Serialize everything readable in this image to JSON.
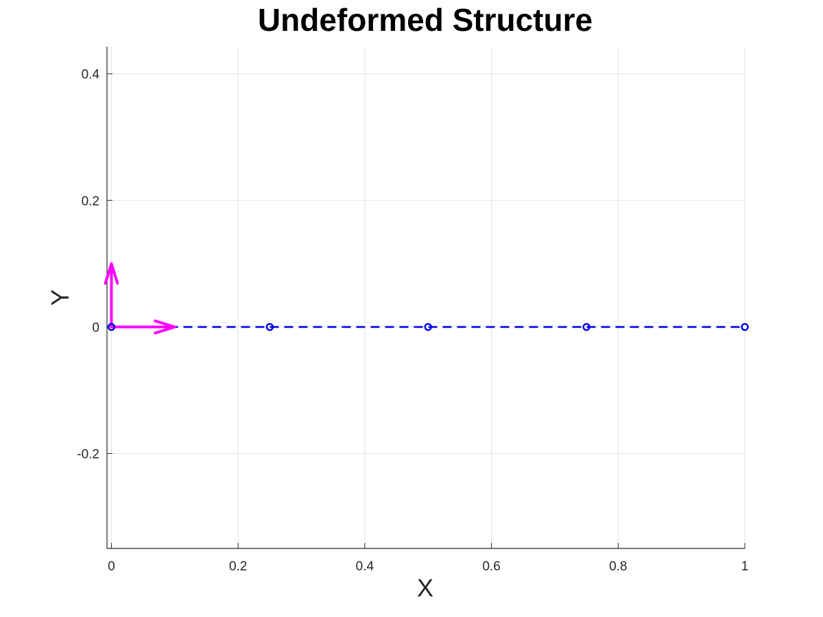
{
  "chart_data": {
    "type": "line",
    "title": "Undeformed Structure",
    "xlabel": "X",
    "ylabel": "Y",
    "xlim": [
      -0.007,
      1.0
    ],
    "ylim": [
      -0.35,
      0.443
    ],
    "grid": true,
    "xticks": [
      0,
      0.2,
      0.4,
      0.6,
      0.8,
      1
    ],
    "xtick_labels": [
      "0",
      "0.2",
      "0.4",
      "0.6",
      "0.8",
      "1"
    ],
    "yticks": [
      -0.2,
      0,
      0.2,
      0.4
    ],
    "ytick_labels": [
      "-0.2",
      "0",
      "0.2",
      "0.4"
    ],
    "series": [
      {
        "line_style": "dashed",
        "marker": "circle",
        "color": "#0000ee",
        "x": [
          0,
          0.25,
          0.5,
          0.75,
          1.0
        ],
        "y": [
          0,
          0,
          0,
          0,
          0
        ]
      }
    ],
    "arrows": [
      {
        "color": "#ff00ff",
        "x": 0,
        "y": 0,
        "dx": 0.1,
        "dy": 0
      },
      {
        "color": "#ff00ff",
        "x": 0,
        "y": 0,
        "dx": 0,
        "dy": 0.1
      }
    ]
  }
}
